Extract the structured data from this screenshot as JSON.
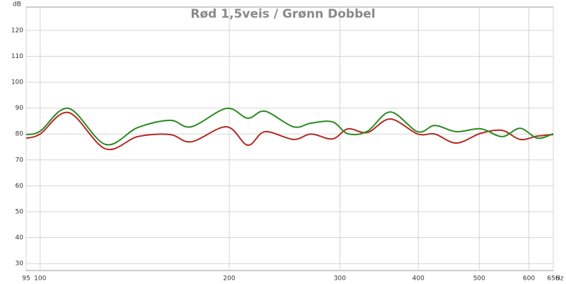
{
  "chart_data": {
    "type": "line",
    "title": "Rød 1,5veis / Grønn Dobbel",
    "x_label": "Hz",
    "y_label": "dB",
    "xscale": "log",
    "grid": true,
    "x": [
      95,
      100,
      111,
      127,
      143,
      161,
      174,
      198,
      214,
      228,
      253,
      270,
      292,
      309,
      332,
      361,
      399,
      425,
      460,
      503,
      544,
      581,
      619,
      656
    ],
    "series": [
      {
        "color": "#b22a22",
        "values": [
          78.4,
          80.0,
          88.3,
          74.3,
          79.0,
          79.8,
          77.0,
          82.8,
          75.7,
          80.9,
          77.9,
          80.0,
          78.1,
          82.0,
          80.6,
          85.8,
          80.0,
          80.0,
          76.5,
          80.3,
          81.4,
          77.9,
          79.2,
          79.8
        ]
      },
      {
        "color": "#2a8a22",
        "values": [
          79.8,
          81.1,
          89.9,
          76.0,
          82.5,
          85.3,
          82.8,
          89.9,
          86.1,
          88.8,
          82.8,
          84.2,
          84.7,
          80.1,
          81.1,
          88.5,
          80.9,
          83.3,
          80.9,
          82.0,
          79.0,
          82.2,
          78.4,
          80.1
        ]
      }
    ],
    "xlim": [
      95,
      656
    ],
    "xticks": [
      95,
      100,
      200,
      300,
      400,
      500,
      600,
      656
    ],
    "ylim": [
      27.3,
      129
    ],
    "yticks": [
      30,
      40,
      50,
      60,
      70,
      80,
      90,
      100,
      110,
      120
    ]
  }
}
